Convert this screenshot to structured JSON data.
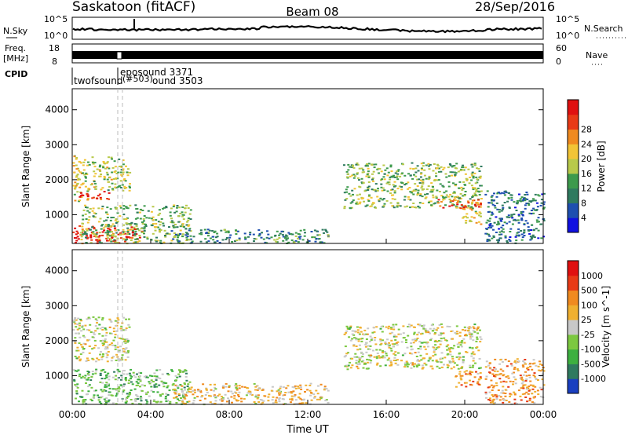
{
  "header": {
    "station": "Saskatoon (fitACF)",
    "beam": "Beam 08",
    "date": "28/Sep/2016"
  },
  "status_panels": {
    "nsky": {
      "label": "N.Sky",
      "ticks": [
        "10^5",
        "10^0"
      ],
      "right_label": "N.Search",
      "right_ticks": [
        "10^5",
        "10^0"
      ]
    },
    "freq": {
      "label_line1": "Freq.",
      "label_line2": "[MHz]",
      "ticks": [
        "18",
        "8"
      ],
      "right_label": "Nave",
      "right_ticks": [
        "60",
        "0"
      ]
    },
    "cpid": {
      "label": "CPID",
      "entries": [
        "eposound 3371",
        "twofsound",
        "(#503)",
        "ound 3503"
      ]
    }
  },
  "chart_data": [
    {
      "type": "heatmap",
      "name": "power",
      "ylabel": "Slant Range [km]",
      "xlabel": "Time UT",
      "yticks": [
        "1000",
        "2000",
        "3000",
        "4000"
      ],
      "ylim": [
        180,
        4600
      ],
      "xlim": [
        0,
        24
      ],
      "xticks": [
        "00:00",
        "04:00",
        "08:00",
        "12:00",
        "16:00",
        "20:00",
        "00:00"
      ],
      "colorbar": {
        "label": "Power [dB]",
        "ticks": [
          "4",
          "8",
          "12",
          "16",
          "20",
          "24",
          "28"
        ],
        "colors": [
          "#1010e0",
          "#1e4fb0",
          "#2f7a5f",
          "#3d9a4c",
          "#b8c94a",
          "#f2c436",
          "#f08a20",
          "#e83a16",
          "#e01010"
        ],
        "range": [
          0,
          32
        ]
      },
      "regions": [
        {
          "t0": 0.0,
          "t1": 1.0,
          "r0": 1400,
          "r1": 2700,
          "level": 0.55
        },
        {
          "t0": 0.3,
          "t1": 1.9,
          "r0": 1450,
          "r1": 1700,
          "level": 0.85
        },
        {
          "t0": 1.0,
          "t1": 2.9,
          "r0": 1700,
          "r1": 2700,
          "level": 0.5
        },
        {
          "t0": 0.0,
          "t1": 3.5,
          "r0": 200,
          "r1": 700,
          "level": 0.9
        },
        {
          "t0": 0.4,
          "t1": 6.0,
          "r0": 200,
          "r1": 1300,
          "level": 0.45
        },
        {
          "t0": 5.0,
          "t1": 13.0,
          "r0": 200,
          "r1": 600,
          "level": 0.3
        },
        {
          "t0": 13.8,
          "t1": 20.8,
          "r0": 1200,
          "r1": 2500,
          "level": 0.45
        },
        {
          "t0": 18.5,
          "t1": 20.8,
          "r0": 1200,
          "r1": 1450,
          "level": 0.85
        },
        {
          "t0": 19.8,
          "t1": 20.8,
          "r0": 700,
          "r1": 1200,
          "level": 0.6
        },
        {
          "t0": 21.0,
          "t1": 24.0,
          "r0": 200,
          "r1": 1700,
          "level": 0.25
        }
      ]
    },
    {
      "type": "heatmap",
      "name": "velocity",
      "ylabel": "Slant Range [km]",
      "xlabel": "Time UT",
      "yticks": [
        "1000",
        "2000",
        "3000",
        "4000"
      ],
      "ylim": [
        180,
        4600
      ],
      "xlim": [
        0,
        24
      ],
      "xticks": [
        "00:00",
        "04:00",
        "08:00",
        "12:00",
        "16:00",
        "20:00",
        "00:00"
      ],
      "colorbar": {
        "label": "Velocity [m s^-1]",
        "ticks": [
          "1000",
          "500",
          "100",
          "25",
          "-25",
          "-100",
          "-500",
          "-1000"
        ],
        "colors": [
          "#1a3fc0",
          "#2f7a5f",
          "#3db040",
          "#7cc840",
          "#c8c8c8",
          "#f0b030",
          "#f08a20",
          "#e83a16",
          "#e01010"
        ],
        "range": [
          -1200,
          1200
        ]
      },
      "regions": [
        {
          "t0": 0.0,
          "t1": 2.9,
          "r0": 1400,
          "r1": 2700,
          "level": 0.5
        },
        {
          "t0": 0.0,
          "t1": 6.0,
          "r0": 200,
          "r1": 1200,
          "level": 0.35
        },
        {
          "t0": 5.0,
          "t1": 13.0,
          "r0": 200,
          "r1": 800,
          "level": 0.58
        },
        {
          "t0": 13.8,
          "t1": 20.8,
          "r0": 1200,
          "r1": 2500,
          "level": 0.5
        },
        {
          "t0": 19.4,
          "t1": 20.8,
          "r0": 700,
          "r1": 1200,
          "level": 0.72
        },
        {
          "t0": 21.0,
          "t1": 24.0,
          "r0": 200,
          "r1": 1500,
          "level": 0.65
        }
      ]
    }
  ]
}
